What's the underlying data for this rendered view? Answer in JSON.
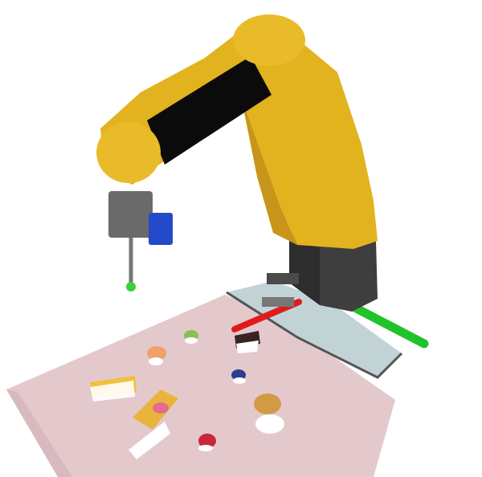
{
  "scene": {
    "background_color": "#ffffff",
    "mat_color": "#e4c9cc",
    "tray_color": "#c2d3d6",
    "robot_body_color": "#e2b31e",
    "robot_panel_color": "#0b0b0b",
    "robot_base_color": "#3e3e3e",
    "tool_flange_color": "#6a6a6a",
    "tool_mount_color": "#2449c9",
    "probe_tip_color": "#3ccf3c",
    "axis_x_color": "#e11b1b",
    "axis_y_color": "#22c22b",
    "objects": [
      {
        "name": "bread-slice-left",
        "color": "#f0c238"
      },
      {
        "name": "bread-slice-center",
        "color": "#eab43c"
      },
      {
        "name": "cupcake-orange",
        "color": "#f2a06a"
      },
      {
        "name": "cupcake-green",
        "color": "#8bbf56"
      },
      {
        "name": "cake-slice",
        "color": "#3a2422"
      },
      {
        "name": "blueberry-cup",
        "color": "#2c3f8f"
      },
      {
        "name": "bun",
        "color": "#d29a45"
      },
      {
        "name": "strawberry",
        "color": "#c8283a"
      }
    ]
  }
}
